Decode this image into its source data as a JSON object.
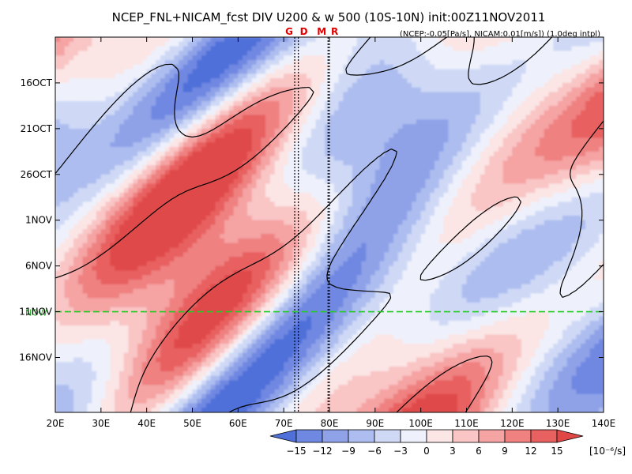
{
  "chart_data": {
    "type": "heatmap",
    "title": "NCEP_FNL+NICAM_fcst DIV U200 & w 500 (10S-10N) init:00Z11NOV2011",
    "subtitle": "(NCEP:-0.05[Pa/s], NICAM:0.01[m/s]) (1.0deg intpl)",
    "x_axis": {
      "range": [
        20,
        140
      ],
      "ticks": [
        20,
        30,
        40,
        50,
        60,
        70,
        80,
        90,
        100,
        110,
        120,
        130,
        140
      ],
      "tick_labels": [
        "20E",
        "30E",
        "40E",
        "50E",
        "60E",
        "70E",
        "80E",
        "90E",
        "100E",
        "110E",
        "120E",
        "130E",
        "140E"
      ]
    },
    "y_axis": {
      "range_days_from_start": [
        0,
        41
      ],
      "ticks": [
        {
          "label": "16OCT",
          "day": 5
        },
        {
          "label": "21OCT",
          "day": 10
        },
        {
          "label": "26OCT",
          "day": 15
        },
        {
          "label": "1NOV",
          "day": 20
        },
        {
          "label": "6NOV",
          "day": 25
        },
        {
          "label": "11NOV",
          "day": 30
        },
        {
          "label": "16NOV",
          "day": 35
        }
      ]
    },
    "now_line": {
      "label": "NOW",
      "day": 30,
      "color": "#22cc22"
    },
    "site_markers": [
      {
        "label": "G",
        "lon": 72.4
      },
      {
        "label": "D",
        "lon": 73.2
      },
      {
        "label": "M",
        "lon": 79.7
      },
      {
        "label": "R",
        "lon": 80.0
      }
    ],
    "colorbar": {
      "levels": [
        -15,
        -12,
        -9,
        -6,
        -3,
        0,
        3,
        6,
        9,
        12,
        15
      ],
      "level_labels": [
        "−15",
        "−12",
        "−9",
        "−6",
        "−3",
        "0",
        "3",
        "6",
        "9",
        "12",
        "15"
      ],
      "colors": [
        "#4f6fd9",
        "#6f88e1",
        "#8fa2e8",
        "#adbdef",
        "#cfd9f6",
        "#eef1fb",
        "#fbe5e5",
        "#f9c5c5",
        "#f5a3a3",
        "#ef8181",
        "#e86060",
        "#e04848"
      ],
      "unit": "[10⁻⁶/s]"
    }
  }
}
